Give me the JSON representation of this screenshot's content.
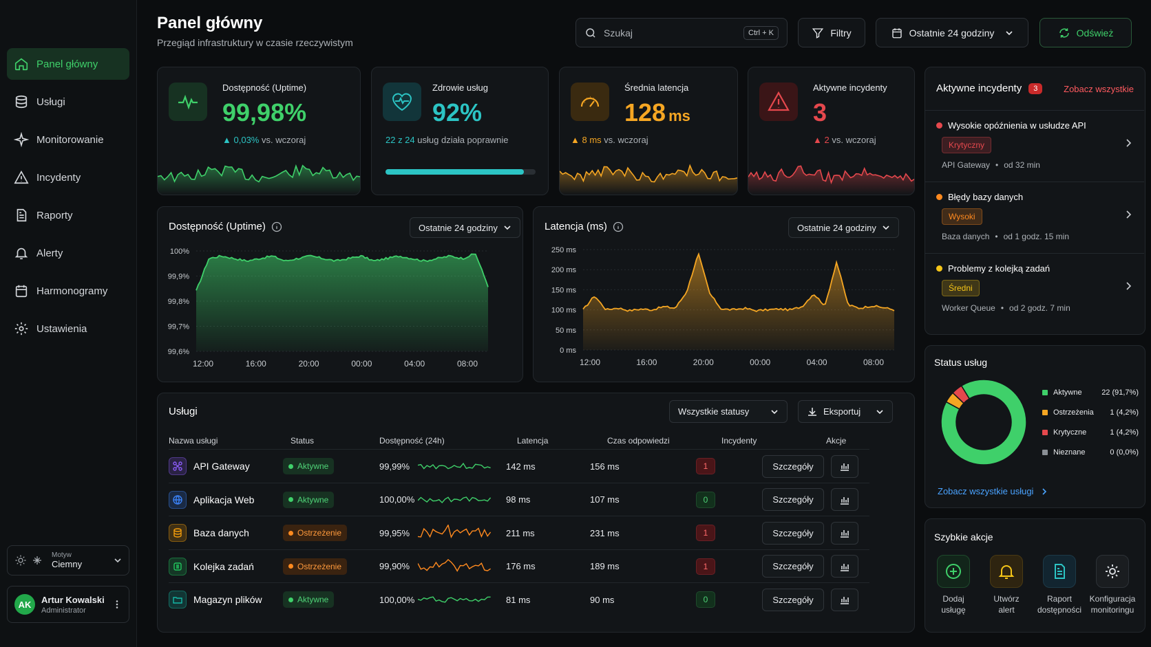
{
  "sidebar": {
    "items": [
      {
        "label": "Panel główny",
        "icon": "home-icon"
      },
      {
        "label": "Usługi",
        "icon": "database-icon"
      },
      {
        "label": "Monitorowanie",
        "icon": "sparkle-icon"
      },
      {
        "label": "Incydenty",
        "icon": "warning-icon"
      },
      {
        "label": "Raporty",
        "icon": "document-icon"
      },
      {
        "label": "Alerty",
        "icon": "bell-icon"
      },
      {
        "label": "Harmonogramy",
        "icon": "calendar-icon"
      },
      {
        "label": "Ustawienia",
        "icon": "gear-icon"
      }
    ],
    "theme": {
      "label": "Motyw",
      "value": "Ciemny"
    },
    "user": {
      "initials": "AK",
      "name": "Artur Kowalski",
      "role": "Administrator"
    }
  },
  "header": {
    "title": "Panel główny",
    "subtitle": "Przegiąd infrastruktury w czasie rzeczywistym",
    "search_placeholder": "Szukaj",
    "search_shortcut": "Ctrl + K",
    "filters_label": "Filtry",
    "range_label": "Ostatnie 24 godziny",
    "refresh_label": "Odśwież"
  },
  "kpis": {
    "uptime": {
      "label": "Dostępność (Uptime)",
      "value": "99,98%",
      "delta": "0,03%",
      "delta_suffix": "vs. wczoraj"
    },
    "health": {
      "label": "Zdrowie usług",
      "value": "92%",
      "note_count": "22 z 24",
      "note_suffix": "usług działa poprawnie",
      "progress": 0.92
    },
    "latency": {
      "label": "Średnia latencja",
      "value": "128",
      "unit": "ms",
      "delta": "8 ms",
      "delta_suffix": "vs. wczoraj"
    },
    "incidents": {
      "label": "Aktywne incydenty",
      "value": "3",
      "delta": "2",
      "delta_suffix": "vs. wczoraj"
    }
  },
  "colors": {
    "green": "#3fd06a",
    "teal": "#2cc4c4",
    "amber": "#f5a623",
    "red": "#e5484d"
  },
  "chart_data": [
    {
      "type": "area",
      "title": "Dostępność (Uptime)",
      "range_label": "Ostatnie 24 godziny",
      "x_ticks": [
        "12:00",
        "16:00",
        "20:00",
        "00:00",
        "04:00",
        "08:00"
      ],
      "y_ticks": [
        "100%",
        "99,9%",
        "99,8%",
        "99,7%",
        "99,6%"
      ],
      "ylim": [
        99.6,
        100.0
      ],
      "x": [
        "11:00",
        "12:00",
        "13:00",
        "14:00",
        "15:00",
        "16:00",
        "17:00",
        "18:00",
        "19:00",
        "20:00",
        "21:00",
        "22:00",
        "23:00",
        "00:00",
        "01:00",
        "02:00",
        "03:00",
        "04:00",
        "05:00",
        "06:00",
        "07:00",
        "08:00",
        "09:00",
        "10:00"
      ],
      "values": [
        99.84,
        99.97,
        99.98,
        99.97,
        99.96,
        99.97,
        99.98,
        99.96,
        99.97,
        99.98,
        99.97,
        99.96,
        99.97,
        99.98,
        99.96,
        99.97,
        99.98,
        99.97,
        99.96,
        99.97,
        99.98,
        99.97,
        99.99,
        99.86
      ]
    },
    {
      "type": "area",
      "title": "Latencja (ms)",
      "range_label": "Ostatnie 24 godziny",
      "x_ticks": [
        "12:00",
        "16:00",
        "20:00",
        "00:00",
        "04:00",
        "08:00"
      ],
      "y_ticks": [
        "250 ms",
        "200 ms",
        "150 ms",
        "100 ms",
        "50 ms",
        "0 ms"
      ],
      "ylim": [
        0,
        250
      ],
      "x": [
        "11:00",
        "12:00",
        "13:00",
        "14:00",
        "15:00",
        "16:00",
        "17:00",
        "18:00",
        "19:00",
        "19:30",
        "20:00",
        "20:30",
        "21:00",
        "22:00",
        "23:00",
        "00:00",
        "01:00",
        "02:00",
        "03:00",
        "04:00",
        "04:30",
        "05:00",
        "05:30",
        "06:00",
        "07:00",
        "08:00",
        "09:00",
        "10:00"
      ],
      "values": [
        100,
        135,
        100,
        105,
        98,
        102,
        100,
        108,
        104,
        145,
        240,
        140,
        102,
        100,
        104,
        98,
        100,
        102,
        100,
        108,
        140,
        110,
        220,
        112,
        104,
        110,
        106,
        100
      ]
    },
    {
      "type": "pie",
      "title": "Status usług",
      "categories": [
        "Aktywne",
        "Ostrzeżenia",
        "Krytyczne",
        "Nieznane"
      ],
      "values": [
        22,
        1,
        1,
        0
      ],
      "labels": [
        "22 (91,7%)",
        "1 (4,2%)",
        "1 (4,2%)",
        "0 (0,0%)"
      ],
      "colors": [
        "#3fd06a",
        "#f5a623",
        "#e5484d",
        "#8a8f95"
      ]
    }
  ],
  "services": {
    "title": "Usługi",
    "status_filter": "Wszystkie statusy",
    "export_label": "Eksportuj",
    "columns": [
      "Nazwa usługi",
      "Status",
      "Dostępność (24h)",
      "Latencja",
      "Czas odpowiedzi",
      "Incydenty",
      "Akcje"
    ],
    "details_label": "Szczegóły",
    "rows": [
      {
        "name": "API Gateway",
        "status": "Aktywne",
        "kind": "ok",
        "uptime": "99,99%",
        "latency": "142 ms",
        "response": "156 ms",
        "incidents": "1",
        "icon": "network-icon",
        "icon_color": "#8b5cf6"
      },
      {
        "name": "Aplikacja Web",
        "status": "Aktywne",
        "kind": "ok",
        "uptime": "100,00%",
        "latency": "98 ms",
        "response": "107 ms",
        "incidents": "0",
        "icon": "globe-icon",
        "icon_color": "#3b82f6"
      },
      {
        "name": "Baza danych",
        "status": "Ostrzeżenie",
        "kind": "warn",
        "uptime": "99,95%",
        "latency": "211 ms",
        "response": "231 ms",
        "incidents": "1",
        "icon": "database-icon",
        "icon_color": "#f59e0b"
      },
      {
        "name": "Kolejka zadań",
        "status": "Ostrzeżenie",
        "kind": "warn",
        "uptime": "99,90%",
        "latency": "176 ms",
        "response": "189 ms",
        "incidents": "1",
        "icon": "queue-icon",
        "icon_color": "#22c55e"
      },
      {
        "name": "Magazyn plików",
        "status": "Aktywne",
        "kind": "ok",
        "uptime": "100,00%",
        "latency": "81 ms",
        "response": "90 ms",
        "incidents": "0",
        "icon": "folder-icon",
        "icon_color": "#14b8a6"
      }
    ]
  },
  "incidents_panel": {
    "title": "Aktywne incydenty",
    "count": "3",
    "see_all": "Zobacz wszystkie",
    "items": [
      {
        "title": "Wysokie opóźnienia w usłudze API",
        "severity": "Krytyczny",
        "service": "API Gateway",
        "since": "od 32 min",
        "color": "#e5484d"
      },
      {
        "title": "Błędy bazy danych",
        "severity": "Wysoki",
        "service": "Baza danych",
        "since": "od 1 godz. 15 min",
        "color": "#ff8a1f"
      },
      {
        "title": "Problemy z kolejką zadań",
        "severity": "Średni",
        "service": "Worker Queue",
        "since": "od  2 godz. 7 min",
        "color": "#f5c518"
      }
    ]
  },
  "status_panel": {
    "title": "Status usług",
    "see_all": "Zobacz wszystkie usługi"
  },
  "quick_actions": {
    "title": "Szybkie akcje",
    "items": [
      {
        "l1": "Dodaj",
        "l2": "usługę",
        "icon": "plus-circle-icon"
      },
      {
        "l1": "Utwórz",
        "l2": "alert",
        "icon": "bell-icon"
      },
      {
        "l1": "Raport",
        "l2": "dostępności",
        "icon": "document-icon"
      },
      {
        "l1": "Konfiguracja",
        "l2": "monitoringu",
        "icon": "gear-icon"
      }
    ]
  }
}
